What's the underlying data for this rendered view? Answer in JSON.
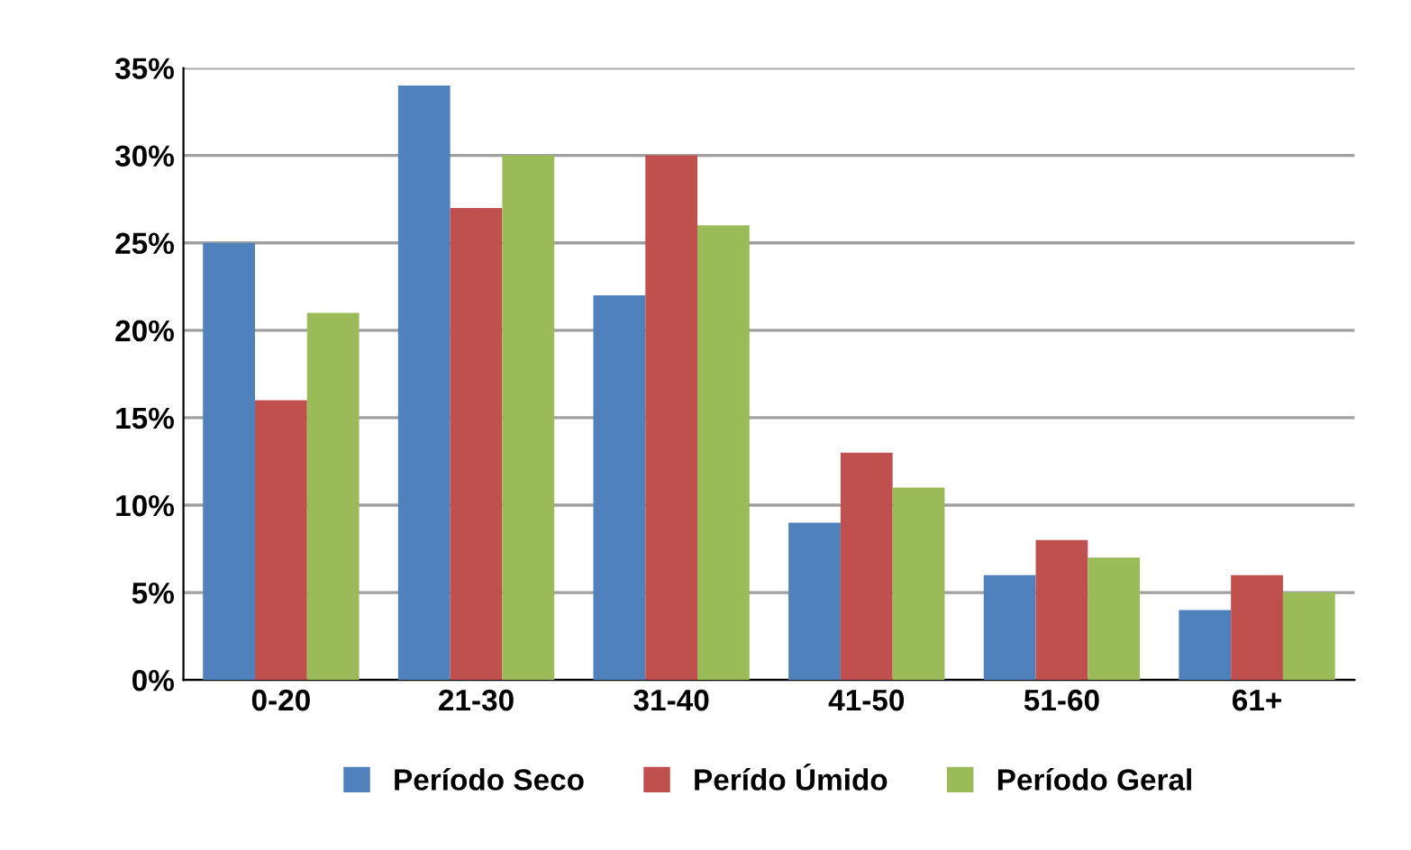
{
  "chart_data": {
    "type": "bar",
    "categories": [
      "0-20",
      "21-30",
      "31-40",
      "41-50",
      "51-60",
      "61+"
    ],
    "series": [
      {
        "name": "Período Seco",
        "color": "#4f81bd",
        "values": [
          25,
          34,
          22,
          9,
          6,
          4
        ]
      },
      {
        "name": "Perído Úmido",
        "color": "#c0504d",
        "values": [
          16,
          27,
          30,
          13,
          8,
          6
        ]
      },
      {
        "name": "Período Geral",
        "color": "#9bbb59",
        "values": [
          21,
          30,
          26,
          11,
          7,
          5
        ]
      }
    ],
    "ylim": [
      0,
      35
    ],
    "yticks": [
      {
        "value": 0,
        "label": "0%"
      },
      {
        "value": 5,
        "label": "5%"
      },
      {
        "value": 10,
        "label": "10%"
      },
      {
        "value": 15,
        "label": "15%"
      },
      {
        "value": 20,
        "label": "20%"
      },
      {
        "value": 25,
        "label": "25%"
      },
      {
        "value": 30,
        "label": "30%"
      },
      {
        "value": 35,
        "label": "35%"
      }
    ],
    "grid": "y",
    "legend": "bottom"
  }
}
